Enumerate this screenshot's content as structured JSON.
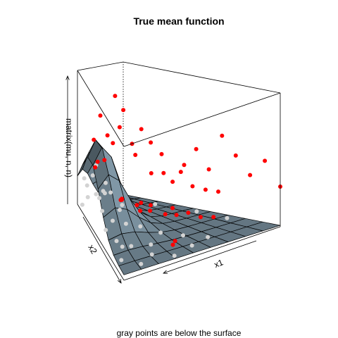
{
  "chart_data": {
    "type": "surface3d",
    "title": "True mean function",
    "xlabel": "x1",
    "ylabel": "x2",
    "zlabel": "matrix(mu, n, n)",
    "caption": "gray points are below the surface",
    "surface_color": "#5f707b",
    "above_point_color": "#ff0000",
    "below_point_color": "#d3d3d3",
    "xlim": [
      0,
      1
    ],
    "ylim": [
      0,
      1
    ],
    "zlim": [
      0,
      1
    ],
    "grid_n": 9,
    "surface": "z = 0.04 + 0.55*exp(-((x1-0.12)^2/0.06 + (x2-0.72)^2/0.08)) approx",
    "points": [
      {
        "x": 0.05,
        "y": 0.95,
        "z": 0.02
      },
      {
        "x": 0.1,
        "y": 0.9,
        "z": 0.1
      },
      {
        "x": 0.15,
        "y": 0.85,
        "z": 0.55
      },
      {
        "x": 0.2,
        "y": 0.8,
        "z": 0.75
      },
      {
        "x": 0.25,
        "y": 0.75,
        "z": 0.62
      },
      {
        "x": 0.3,
        "y": 0.7,
        "z": 0.93
      },
      {
        "x": 0.35,
        "y": 0.65,
        "z": 0.84
      },
      {
        "x": 0.4,
        "y": 0.6,
        "z": 0.6
      },
      {
        "x": 0.45,
        "y": 0.55,
        "z": 0.72
      },
      {
        "x": 0.5,
        "y": 0.5,
        "z": 0.4
      },
      {
        "x": 0.55,
        "y": 0.45,
        "z": 0.55
      },
      {
        "x": 0.6,
        "y": 0.4,
        "z": 0.35
      },
      {
        "x": 0.65,
        "y": 0.35,
        "z": 0.48
      },
      {
        "x": 0.7,
        "y": 0.3,
        "z": 0.6
      },
      {
        "x": 0.75,
        "y": 0.25,
        "z": 0.45
      },
      {
        "x": 0.8,
        "y": 0.2,
        "z": 0.7
      },
      {
        "x": 0.85,
        "y": 0.15,
        "z": 0.55
      },
      {
        "x": 0.9,
        "y": 0.1,
        "z": 0.4
      },
      {
        "x": 0.95,
        "y": 0.05,
        "z": 0.5
      },
      {
        "x": 0.05,
        "y": 0.2,
        "z": 0.02
      },
      {
        "x": 0.1,
        "y": 0.3,
        "z": 0.05
      },
      {
        "x": 0.2,
        "y": 0.35,
        "z": 0.0
      },
      {
        "x": 0.3,
        "y": 0.25,
        "z": 0.03
      },
      {
        "x": 0.4,
        "y": 0.15,
        "z": 0.04
      },
      {
        "x": 0.5,
        "y": 0.1,
        "z": 0.02
      },
      {
        "x": 0.6,
        "y": 0.6,
        "z": 0.06
      },
      {
        "x": 0.7,
        "y": 0.55,
        "z": 0.03
      },
      {
        "x": 0.8,
        "y": 0.45,
        "z": 0.05
      },
      {
        "x": 0.9,
        "y": 0.35,
        "z": 0.02
      },
      {
        "x": 0.15,
        "y": 0.55,
        "z": 0.1
      },
      {
        "x": 0.25,
        "y": 0.5,
        "z": 0.08
      },
      {
        "x": 0.35,
        "y": 0.45,
        "z": 0.06
      },
      {
        "x": 0.45,
        "y": 0.35,
        "z": 0.03
      },
      {
        "x": 0.55,
        "y": 0.25,
        "z": 0.02
      },
      {
        "x": 0.65,
        "y": 0.15,
        "z": 0.01
      },
      {
        "x": 0.75,
        "y": 0.7,
        "z": 0.04
      },
      {
        "x": 0.85,
        "y": 0.6,
        "z": 0.03
      },
      {
        "x": 0.95,
        "y": 0.5,
        "z": 0.01
      },
      {
        "x": 0.1,
        "y": 0.7,
        "z": 0.2
      },
      {
        "x": 0.2,
        "y": 0.65,
        "z": 0.25
      },
      {
        "x": 0.05,
        "y": 0.5,
        "z": 0.08
      },
      {
        "x": 0.3,
        "y": 0.85,
        "z": 0.15
      },
      {
        "x": 0.4,
        "y": 0.9,
        "z": 0.1
      },
      {
        "x": 0.5,
        "y": 0.8,
        "z": 0.08
      },
      {
        "x": 0.6,
        "y": 0.85,
        "z": 0.05
      },
      {
        "x": 0.7,
        "y": 0.9,
        "z": 0.03
      },
      {
        "x": 0.8,
        "y": 0.8,
        "z": 0.02
      },
      {
        "x": 0.9,
        "y": 0.75,
        "z": 0.01
      },
      {
        "x": 0.15,
        "y": 0.1,
        "z": 0.01
      },
      {
        "x": 0.35,
        "y": 0.05,
        "z": 0.02
      },
      {
        "x": 0.05,
        "y": 0.75,
        "z": 0.35
      },
      {
        "x": 0.12,
        "y": 0.78,
        "z": 0.4
      },
      {
        "x": 0.18,
        "y": 0.7,
        "z": 0.3
      },
      {
        "x": 0.08,
        "y": 0.62,
        "z": 0.15
      },
      {
        "x": 0.22,
        "y": 0.88,
        "z": 0.12
      },
      {
        "x": 0.28,
        "y": 0.62,
        "z": 0.12
      },
      {
        "x": 0.45,
        "y": 0.75,
        "z": 0.07
      },
      {
        "x": 0.55,
        "y": 0.65,
        "z": 0.05
      },
      {
        "x": 0.65,
        "y": 0.75,
        "z": 0.04
      },
      {
        "x": 0.75,
        "y": 0.5,
        "z": 0.03
      },
      {
        "x": 0.85,
        "y": 0.4,
        "z": 0.02
      },
      {
        "x": 0.95,
        "y": 0.3,
        "z": 0.01
      },
      {
        "x": 0.45,
        "y": 0.2,
        "z": 0.03
      },
      {
        "x": 0.25,
        "y": 0.15,
        "z": 0.02
      },
      {
        "x": 0.1,
        "y": 0.4,
        "z": 0.04
      },
      {
        "x": 0.58,
        "y": 0.92,
        "z": 0.45
      },
      {
        "x": 0.62,
        "y": 0.88,
        "z": 0.58
      },
      {
        "x": 0.68,
        "y": 0.78,
        "z": 0.4
      },
      {
        "x": 0.72,
        "y": 0.68,
        "z": 0.52
      },
      {
        "x": 0.78,
        "y": 0.62,
        "z": 0.3
      },
      {
        "x": 0.82,
        "y": 0.52,
        "z": 0.33
      },
      {
        "x": 0.88,
        "y": 0.48,
        "z": 0.22
      },
      {
        "x": 0.92,
        "y": 0.42,
        "z": 0.2
      },
      {
        "x": 0.98,
        "y": 0.38,
        "z": 0.18
      },
      {
        "x": 0.3,
        "y": 0.95,
        "z": 0.28
      },
      {
        "x": 0.4,
        "y": 0.98,
        "z": 0.3
      },
      {
        "x": 0.48,
        "y": 0.95,
        "z": 0.32
      },
      {
        "x": 0.02,
        "y": 0.88,
        "z": 0.26
      },
      {
        "x": 0.02,
        "y": 0.82,
        "z": 0.24
      },
      {
        "x": 1.0,
        "y": 0.0,
        "z": 0.3
      }
    ]
  }
}
